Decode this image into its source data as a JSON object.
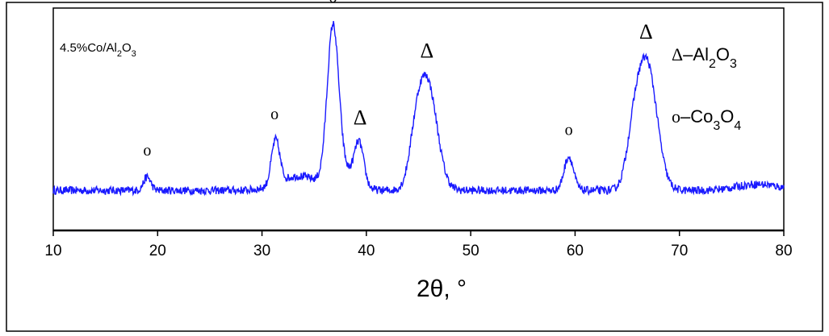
{
  "chart_data": {
    "type": "line",
    "title": "",
    "xlabel": "2θ, °",
    "ylabel": "",
    "xlim": [
      10,
      80
    ],
    "x_ticks": [
      "10",
      "20",
      "30",
      "40",
      "50",
      "60",
      "70",
      "80"
    ],
    "sample_label": {
      "text": "4.5%Co/Al2O3",
      "main": "4.5%Co/Al",
      "sub1": "2",
      "mid": "O",
      "sub2": "3"
    },
    "legend": [
      {
        "symbol": "Δ",
        "dash": "–",
        "main": "Al",
        "sub1": "2",
        "mid": "O",
        "sub2": "3",
        "text": "Δ–Al2O3"
      },
      {
        "symbol": "o",
        "dash": "–",
        "main": "Co",
        "sub1": "3",
        "mid": "O",
        "sub2": "4",
        "text": "o–Co3O4"
      }
    ],
    "peak_markers": [
      {
        "symbol": "o",
        "x": 19.0
      },
      {
        "symbol": "o",
        "x": 31.2
      },
      {
        "symbol": "o",
        "x": 36.8
      },
      {
        "symbol": "Δ",
        "x": 39.4
      },
      {
        "symbol": "Δ",
        "x": 45.8
      },
      {
        "symbol": "o",
        "x": 59.4
      },
      {
        "symbol": "Δ",
        "x": 66.8
      }
    ],
    "series": [
      {
        "color": "#1a1aff",
        "baseline": 4.5,
        "noise": 0.45,
        "peaks": [
          {
            "x": 19.0,
            "height": 1.5,
            "width": 0.35
          },
          {
            "x": 31.3,
            "height": 5.0,
            "width": 0.4
          },
          {
            "x": 33.5,
            "height": 1.6,
            "width": 1.8
          },
          {
            "x": 36.8,
            "height": 17.0,
            "width": 0.55
          },
          {
            "x": 37.8,
            "height": 2.0,
            "width": 1.2
          },
          {
            "x": 39.3,
            "height": 4.6,
            "width": 0.45
          },
          {
            "x": 45.8,
            "height": 12.3,
            "width": 0.95
          },
          {
            "x": 44.7,
            "height": 3.0,
            "width": 0.6
          },
          {
            "x": 59.4,
            "height": 3.8,
            "width": 0.45
          },
          {
            "x": 65.6,
            "height": 4.5,
            "width": 0.7
          },
          {
            "x": 66.9,
            "height": 14.0,
            "width": 0.95
          },
          {
            "x": 77.5,
            "height": 0.7,
            "width": 2.0
          }
        ]
      }
    ]
  }
}
